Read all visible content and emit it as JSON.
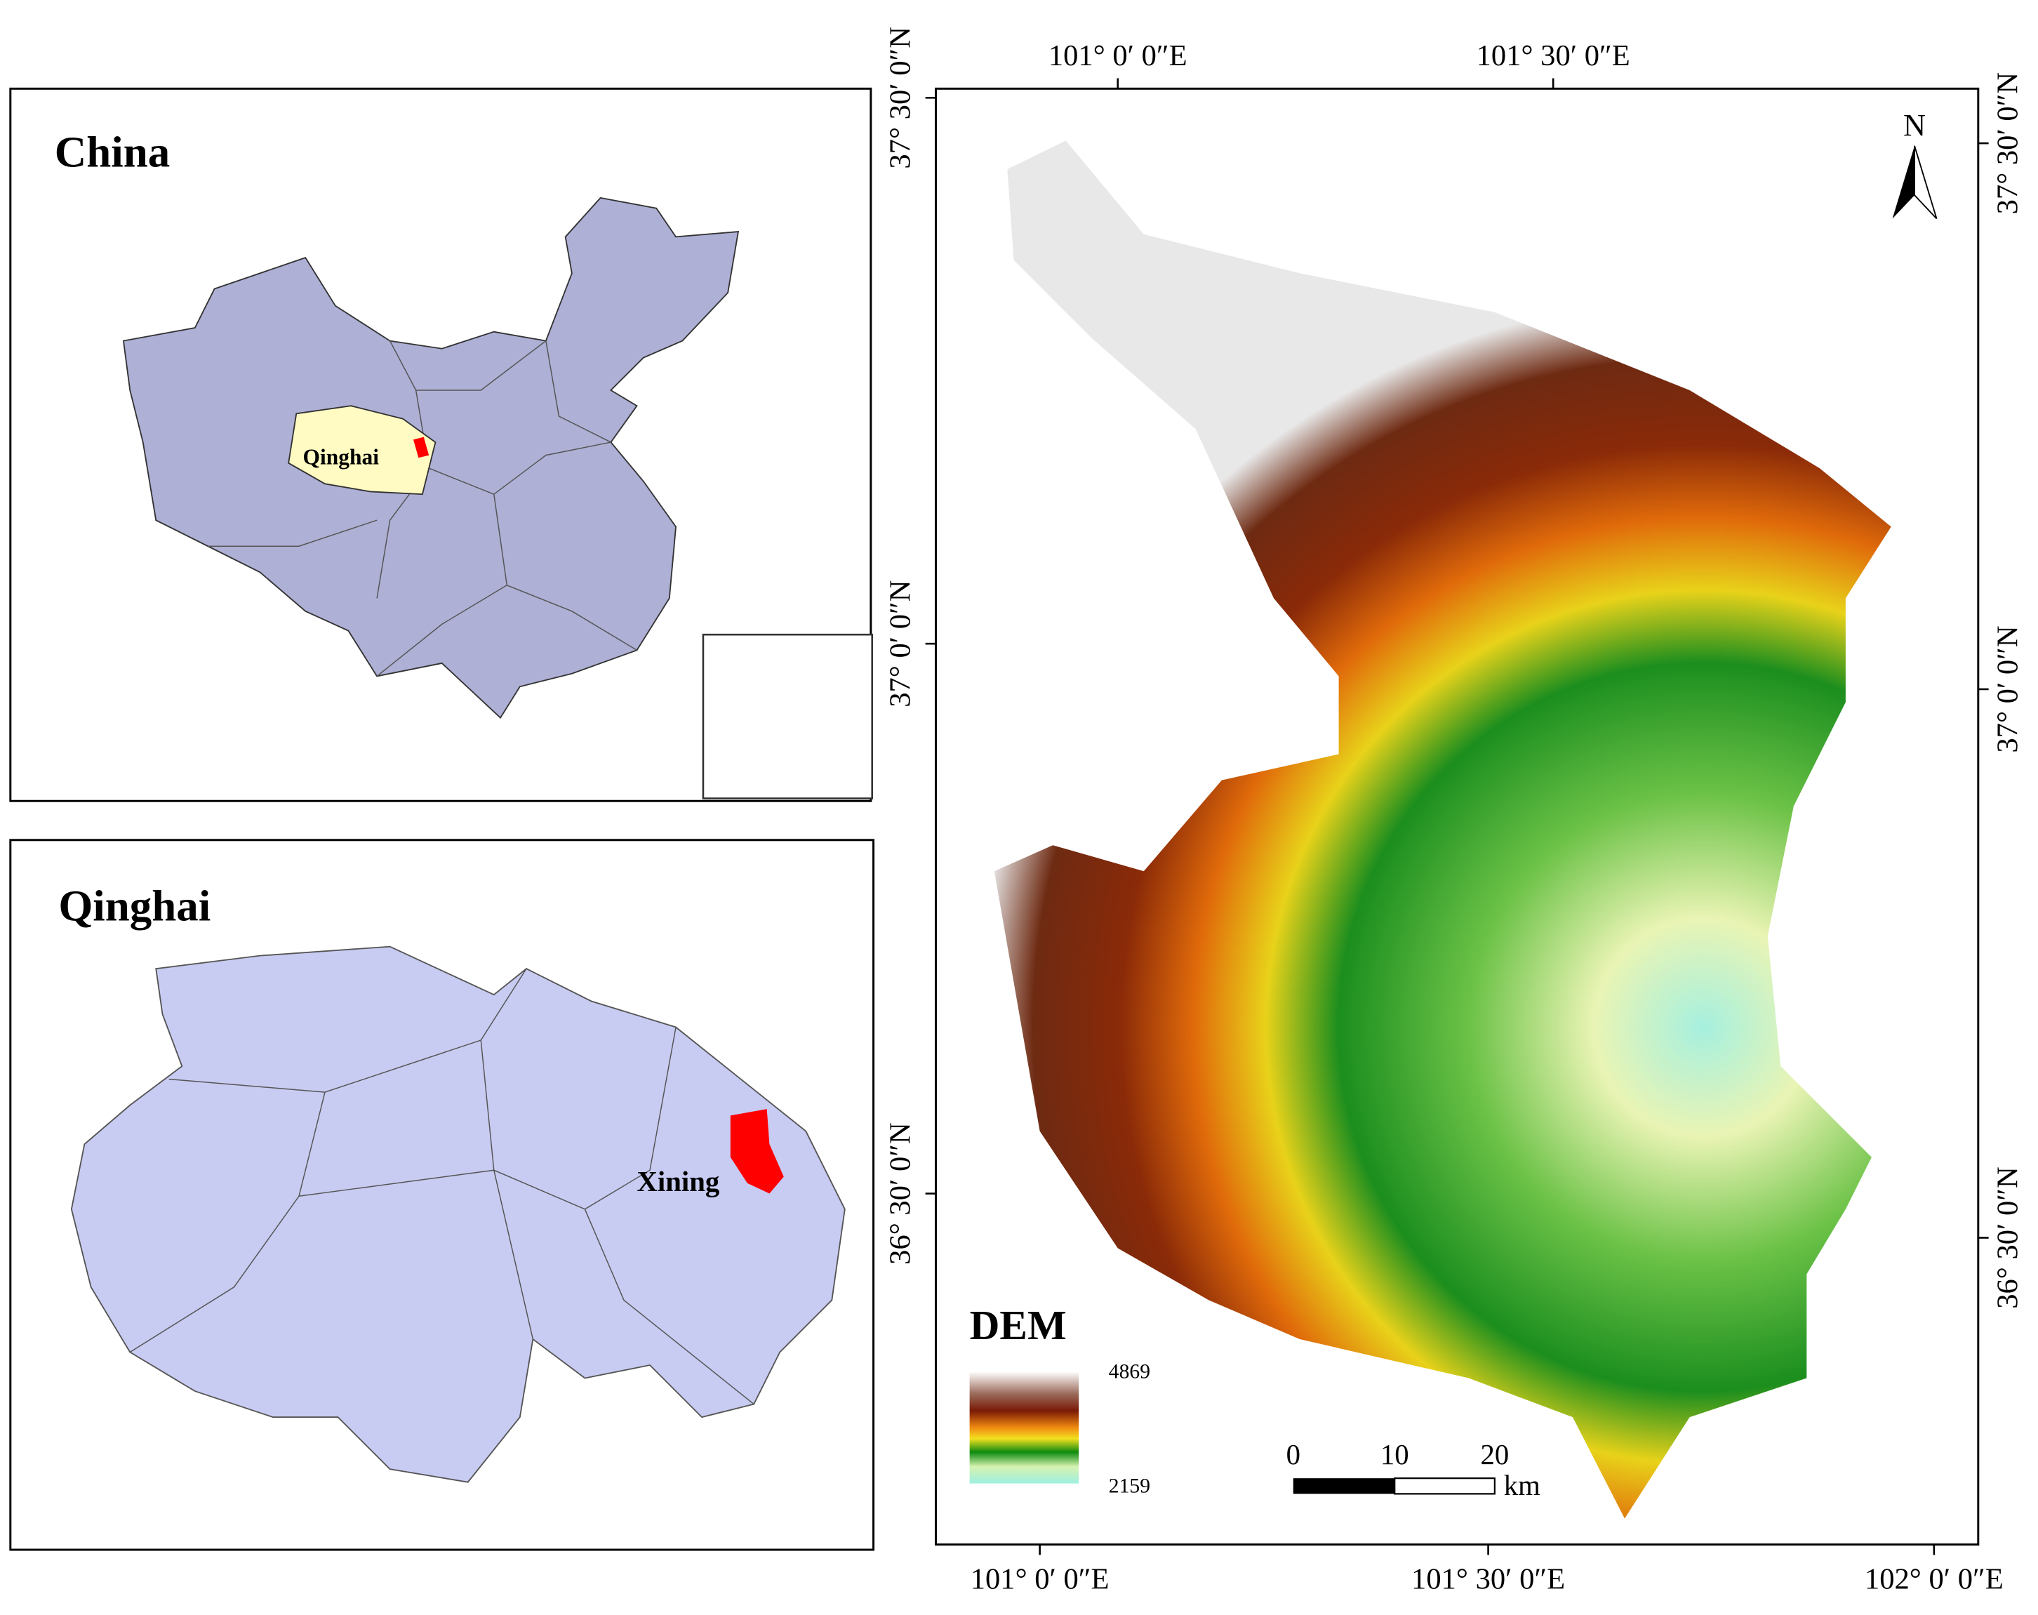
{
  "panels": {
    "china": {
      "title": "China",
      "label": "Qinghai"
    },
    "qinghai": {
      "title": "Qinghai",
      "label": "Xining"
    }
  },
  "dem_map": {
    "north": "N",
    "legend": {
      "title": "DEM",
      "max": 4869,
      "min": 2159
    },
    "scale_bar": {
      "labels": [
        0,
        10,
        20
      ],
      "unit": "km"
    },
    "top_labels": [
      "101° 0′ 0″E",
      "101° 30′ 0″E"
    ],
    "bottom_labels": [
      "101° 0′ 0″E",
      "101° 30′ 0″E",
      "102° 0′ 0″E"
    ],
    "left_labels": [
      "37° 30′ 0″N",
      "37° 0′ 0″N",
      "36° 30′ 0″N"
    ],
    "right_labels": [
      "37° 30′ 0″N",
      "37° 0′ 0″N",
      "36° 30′ 0″N"
    ]
  }
}
